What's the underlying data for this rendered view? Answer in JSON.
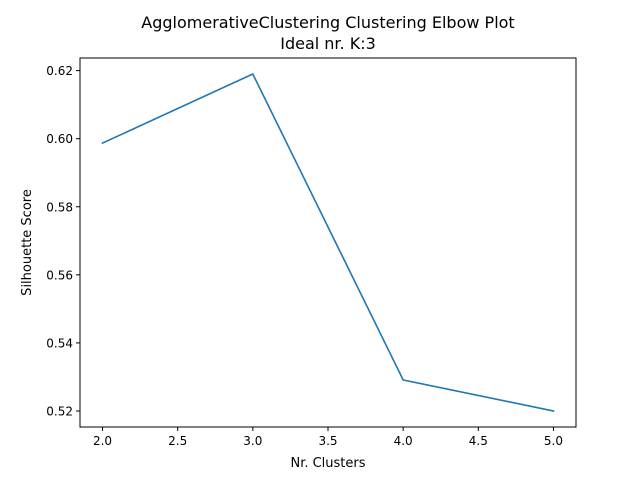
{
  "chart_data": {
    "type": "line",
    "title": "AgglomerativeClustering Clustering Elbow Plot",
    "subtitle": "Ideal nr. K:3",
    "xlabel": "Nr. Clusters",
    "ylabel": "Silhouette Score",
    "x": [
      2,
      3,
      4,
      5
    ],
    "series": [
      {
        "values": [
          0.5987,
          0.619,
          0.5291,
          0.52
        ],
        "color": "#1f77b4"
      }
    ],
    "xlim": [
      1.85,
      5.15
    ],
    "ylim": [
      0.5153,
      0.6237
    ],
    "xticks": [
      2.0,
      2.5,
      3.0,
      3.5,
      4.0,
      4.5,
      5.0
    ],
    "xtick_labels": [
      "2.0",
      "2.5",
      "3.0",
      "3.5",
      "4.0",
      "4.5",
      "5.0"
    ],
    "yticks": [
      0.52,
      0.54,
      0.56,
      0.58,
      0.6,
      0.62
    ],
    "ytick_labels": [
      "0.52",
      "0.54",
      "0.56",
      "0.58",
      "0.60",
      "0.62"
    ],
    "grid": false,
    "legend": false
  }
}
